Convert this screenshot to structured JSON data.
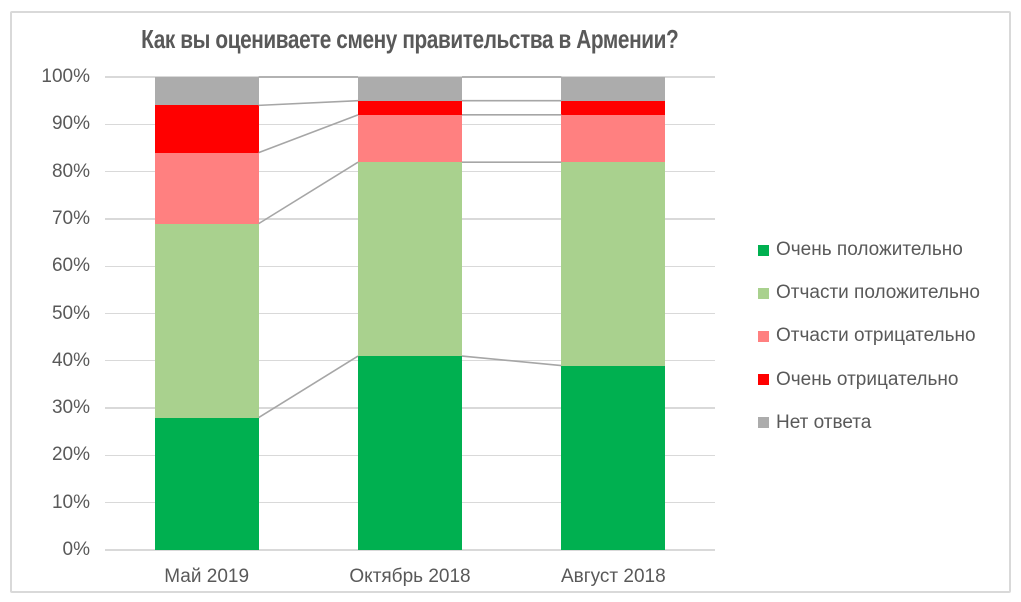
{
  "chart_data": {
    "type": "bar",
    "variant": "stacked-percent-column",
    "title": "Как вы оцениваете смену правительства в Армении?",
    "categories": [
      "Май 2019",
      "Октябрь 2018",
      "Август 2018"
    ],
    "series": [
      {
        "name": "Очень положительно",
        "color": "#00B050",
        "values": [
          28,
          41,
          39
        ]
      },
      {
        "name": "Отчасти положительно",
        "color": "#A9D18E",
        "values": [
          41,
          41,
          43
        ]
      },
      {
        "name": "Отчасти отрицательно",
        "color": "#FF8080",
        "values": [
          15,
          10,
          10
        ]
      },
      {
        "name": "Очень отрицательно",
        "color": "#FF0000",
        "values": [
          10,
          3,
          3
        ]
      },
      {
        "name": "Нет ответа",
        "color": "#ACACAC",
        "values": [
          6,
          5,
          5
        ]
      }
    ],
    "y_axis": {
      "min": 0,
      "max": 100,
      "step": 10,
      "tick_suffix": "%"
    },
    "xlabel": "",
    "ylabel": "",
    "grid": true,
    "connector_lines": true,
    "legend_position": "right"
  },
  "colors": {
    "text": "#595959",
    "gridline": "#D9D9D9",
    "connector": "#A6A6A6",
    "frame_border": "#D9D9D9",
    "background": "#FFFFFF"
  }
}
